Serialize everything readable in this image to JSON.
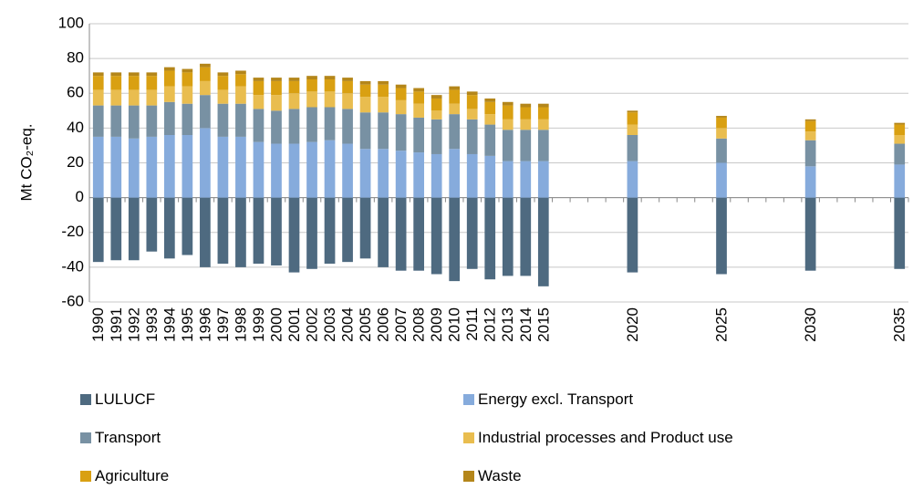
{
  "chart_data": {
    "type": "bar",
    "stacked": true,
    "y_label": "Mt CO₂-eq.",
    "categories": [
      "1990",
      "1991",
      "1992",
      "1993",
      "1994",
      "1995",
      "1996",
      "1997",
      "1998",
      "1999",
      "2000",
      "2001",
      "2002",
      "2003",
      "2004",
      "2005",
      "2006",
      "2007",
      "2008",
      "2009",
      "2010",
      "2011",
      "2012",
      "2013",
      "2014",
      "2015",
      null,
      null,
      null,
      null,
      "2020",
      null,
      null,
      null,
      null,
      "2025",
      null,
      null,
      null,
      null,
      "2030",
      null,
      null,
      null,
      null,
      "2035"
    ],
    "series": [
      {
        "name": "LULUCF",
        "color": "#4e6a80",
        "values": [
          -37,
          -36,
          -36,
          -31,
          -35,
          -33,
          -40,
          -38,
          -40,
          -38,
          -39,
          -43,
          -41,
          -38,
          -37,
          -35,
          -40,
          -42,
          -42,
          -44,
          -48,
          -41,
          -47,
          -45,
          -45,
          -51,
          null,
          null,
          null,
          null,
          -43,
          null,
          null,
          null,
          null,
          -44,
          null,
          null,
          null,
          null,
          -42,
          null,
          null,
          null,
          null,
          -41
        ]
      },
      {
        "name": "Energy excl. Transport",
        "color": "#86abdc",
        "values": [
          35,
          35,
          34,
          35,
          36,
          36,
          40,
          35,
          35,
          32,
          31,
          31,
          32,
          33,
          31,
          28,
          28,
          27,
          26,
          25,
          28,
          25,
          24,
          21,
          21,
          21,
          null,
          null,
          null,
          null,
          21,
          null,
          null,
          null,
          null,
          20,
          null,
          null,
          null,
          null,
          18,
          null,
          null,
          null,
          null,
          19
        ]
      },
      {
        "name": "Transport",
        "color": "#7891a3",
        "values": [
          18,
          18,
          19,
          18,
          19,
          18,
          19,
          19,
          19,
          19,
          19,
          20,
          20,
          19,
          20,
          21,
          21,
          21,
          20,
          20,
          20,
          20,
          18,
          18,
          18,
          18,
          null,
          null,
          null,
          null,
          15,
          null,
          null,
          null,
          null,
          14,
          null,
          null,
          null,
          null,
          15,
          null,
          null,
          null,
          null,
          12
        ]
      },
      {
        "name": "Industrial processes and Product use",
        "color": "#e9bd4f",
        "values": [
          9,
          9,
          9,
          9,
          9,
          10,
          8,
          8,
          10,
          8,
          9,
          9,
          9,
          9,
          9,
          9,
          9,
          8,
          8,
          5,
          6,
          6,
          6,
          6,
          6,
          6,
          null,
          null,
          null,
          null,
          6,
          null,
          null,
          null,
          null,
          6,
          null,
          null,
          null,
          null,
          5,
          null,
          null,
          null,
          null,
          5
        ]
      },
      {
        "name": "Agriculture",
        "color": "#d9a012",
        "values": [
          8,
          8,
          8,
          8,
          9,
          8,
          8,
          8,
          7,
          8,
          8,
          7,
          7,
          7,
          7,
          7,
          7,
          7,
          7,
          7,
          8,
          8,
          7,
          8,
          7,
          7,
          null,
          null,
          null,
          null,
          7,
          null,
          null,
          null,
          null,
          6,
          null,
          null,
          null,
          null,
          6,
          null,
          null,
          null,
          null,
          6
        ]
      },
      {
        "name": "Waste",
        "color": "#b4861a",
        "values": [
          2,
          2,
          2,
          2,
          2,
          2,
          2,
          2,
          2,
          2,
          2,
          2,
          2,
          2,
          2,
          2,
          2,
          2,
          2,
          2,
          2,
          2,
          2,
          2,
          2,
          2,
          null,
          null,
          null,
          null,
          1,
          null,
          null,
          null,
          null,
          1,
          null,
          null,
          null,
          null,
          1,
          null,
          null,
          null,
          null,
          1
        ]
      }
    ],
    "ylim": [
      -60,
      100
    ],
    "yticks": [
      -60,
      -40,
      -20,
      0,
      20,
      40,
      60,
      80,
      100
    ],
    "grid": true
  }
}
